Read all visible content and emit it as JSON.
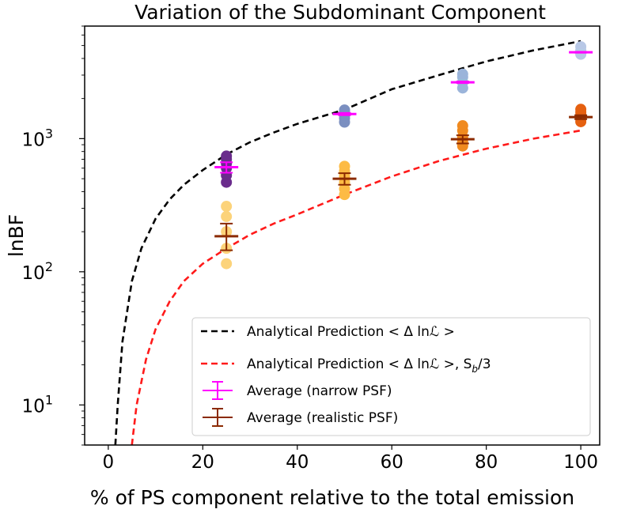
{
  "chart_data": {
    "type": "scatter",
    "title": "Variation of the Subdominant Component",
    "xlabel": "% of PS component relative to the total emission",
    "ylabel": "lnBF",
    "xlim": [
      -5,
      104
    ],
    "ylim": [
      5,
      7000
    ],
    "yscale": "log",
    "xticks": [
      0,
      20,
      40,
      60,
      80,
      100
    ],
    "yticks": [
      {
        "value": 10,
        "base": "10",
        "exp": "1"
      },
      {
        "value": 100,
        "base": "10",
        "exp": "2"
      },
      {
        "value": 1000,
        "base": "10",
        "exp": "3"
      }
    ],
    "legend_position": "lower-right",
    "curves": [
      {
        "name": "Analytical Prediction  < Δ lnℒ >",
        "label_main": "Analytical Prediction  < Δ lnℒ >",
        "label_extra": "",
        "color": "#000000",
        "x": [
          1.5,
          2,
          3,
          5,
          7,
          10,
          13,
          16,
          20,
          25,
          30,
          35,
          40,
          50,
          60,
          70,
          80,
          90,
          100
        ],
        "y": [
          5,
          10,
          30,
          85,
          150,
          250,
          350,
          450,
          580,
          760,
          940,
          1110,
          1290,
          1650,
          2350,
          3000,
          3800,
          4600,
          5400
        ]
      },
      {
        "name": "Analytical Prediction  < Δ lnℒ >, Sb/3",
        "label_main": "Analytical Prediction  < Δ lnℒ >",
        "label_extra": ", S",
        "label_sub": "b",
        "label_tail": "/3",
        "color": "#ff1a1a",
        "x": [
          5,
          6,
          8,
          10,
          13,
          16,
          20,
          25,
          30,
          35,
          40,
          50,
          60,
          70,
          80,
          90,
          100
        ],
        "y": [
          5,
          10,
          22,
          37,
          60,
          85,
          115,
          150,
          190,
          230,
          270,
          380,
          520,
          680,
          840,
          1000,
          1150
        ]
      }
    ],
    "scatter_series": [
      {
        "name": "narrow PSF samples x=25",
        "color": "#6a2c8c",
        "x": 25,
        "y": [
          470,
          530,
          600,
          650,
          700,
          740
        ]
      },
      {
        "name": "narrow PSF samples x=50",
        "color": "#7b8fc0",
        "x": 50,
        "y": [
          1330,
          1420,
          1500,
          1580,
          1640
        ]
      },
      {
        "name": "narrow PSF samples x=75",
        "color": "#9bb4da",
        "x": 75,
        "y": [
          2400,
          2650,
          2900,
          3050
        ]
      },
      {
        "name": "narrow PSF samples x=100",
        "color": "#b8c8e6",
        "x": 100,
        "y": [
          4300,
          4600,
          4900
        ]
      },
      {
        "name": "realistic PSF samples x=25",
        "color": "#fcd37a",
        "x": 25,
        "y": [
          115,
          150,
          200,
          260,
          310
        ]
      },
      {
        "name": "realistic PSF samples x=50",
        "color": "#fdbb45",
        "x": 50,
        "y": [
          380,
          420,
          470,
          520,
          570,
          620
        ]
      },
      {
        "name": "realistic PSF samples x=75",
        "color": "#f08a1f",
        "x": 75,
        "y": [
          880,
          950,
          1030,
          1150,
          1250
        ]
      },
      {
        "name": "realistic PSF samples x=100",
        "color": "#e56010",
        "x": 100,
        "y": [
          1340,
          1420,
          1500,
          1580,
          1660
        ]
      }
    ],
    "errorbars": [
      {
        "name": "Average (narrow PSF)",
        "color": "#ff00ff",
        "points": [
          {
            "x": 25,
            "y": 610,
            "lo": 555,
            "hi": 665
          },
          {
            "x": 50,
            "y": 1530,
            "lo": 1500,
            "hi": 1560
          },
          {
            "x": 75,
            "y": 2650,
            "lo": 2610,
            "hi": 2690
          },
          {
            "x": 100,
            "y": 4450,
            "lo": 4420,
            "hi": 4480
          }
        ]
      },
      {
        "name": "Average (realistic PSF)",
        "color": "#8b2a00",
        "points": [
          {
            "x": 25,
            "y": 185,
            "lo": 145,
            "hi": 230
          },
          {
            "x": 50,
            "y": 500,
            "lo": 450,
            "hi": 550
          },
          {
            "x": 75,
            "y": 990,
            "lo": 920,
            "hi": 1060
          },
          {
            "x": 100,
            "y": 1450,
            "lo": 1400,
            "hi": 1500
          }
        ]
      }
    ]
  }
}
